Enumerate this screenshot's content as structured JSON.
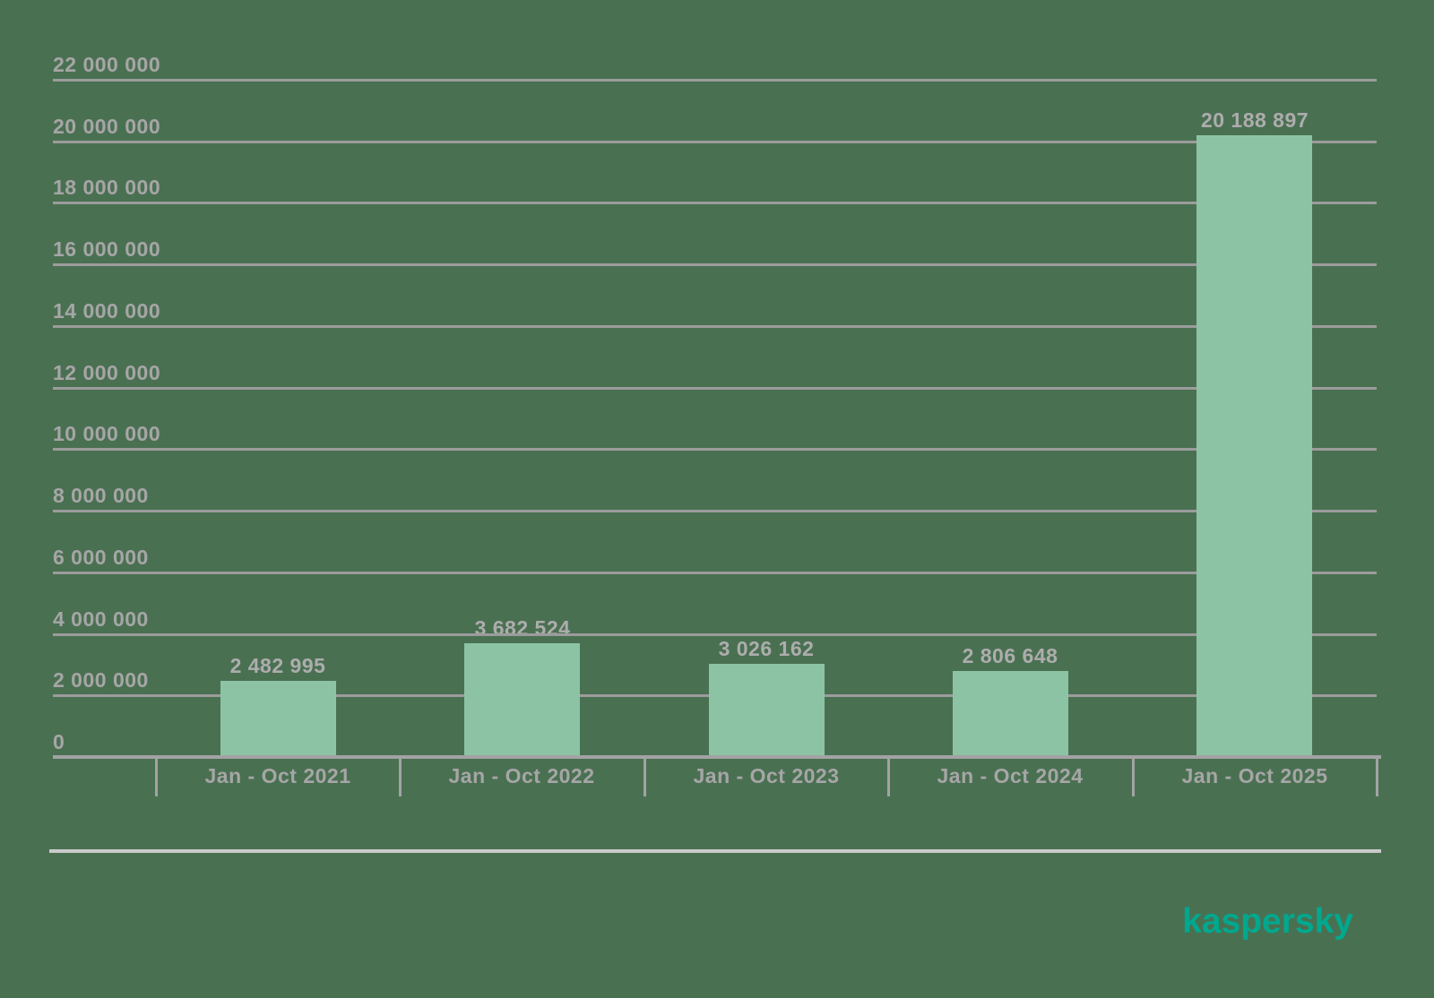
{
  "chart_data": {
    "type": "bar",
    "title": "",
    "xlabel": "",
    "ylabel": "",
    "categories": [
      "Jan - Oct 2021",
      "Jan - Oct 2022",
      "Jan - Oct 2023",
      "Jan - Oct 2024",
      "Jan - Oct 2025"
    ],
    "values": [
      2482995,
      3682524,
      3026162,
      2806648,
      20188897
    ],
    "bar_labels": [
      "2 482 995",
      "3 682 524",
      "3 026 162",
      "2 806 648",
      "20 188 897"
    ],
    "ylim": [
      0,
      22000000
    ],
    "y_tick_step": 2000000,
    "y_tick_labels": [
      "0",
      "2 000 000",
      "4 000 000",
      "6 000 000",
      "8 000 000",
      "10 000 000",
      "12 000 000",
      "14 000 000",
      "16 000 000",
      "18 000 000",
      "20 000 000",
      "22 000 000"
    ],
    "grid": "horizontal",
    "legend": "none"
  },
  "colors": {
    "background": "#4a7052",
    "bar": "#8dc3a5",
    "gridline": "#9c9c9c",
    "axis": "#a3a3a3",
    "label_text": "#a6a6a6",
    "value_label_text": "#adadad",
    "separator": "#cbcbcb",
    "logo": "#00A88E"
  },
  "branding": {
    "logo_text": "kaspersky"
  }
}
